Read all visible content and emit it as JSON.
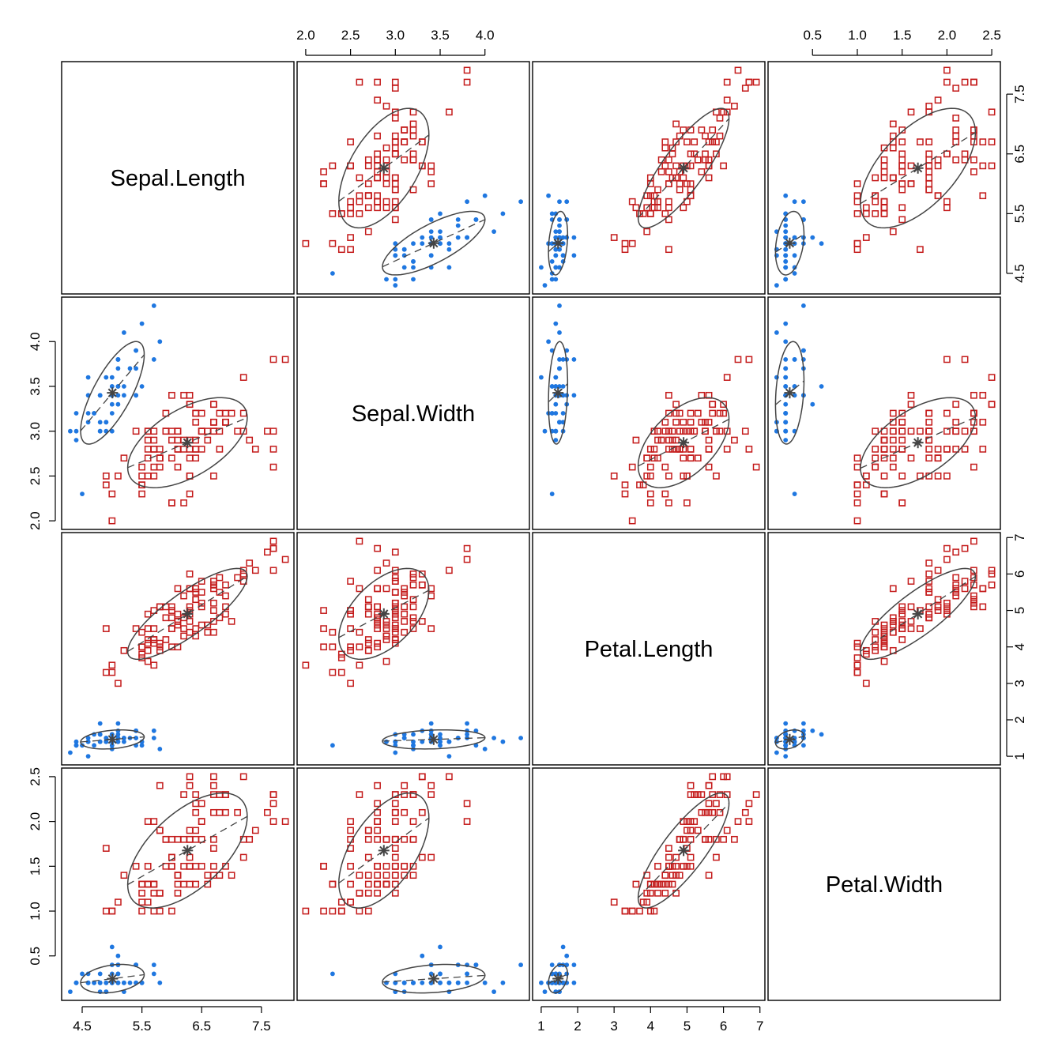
{
  "chart_data": {
    "type": "scatter",
    "layout": "scatterplot-matrix",
    "variables": [
      "Sepal.Length",
      "Sepal.Width",
      "Petal.Length",
      "Petal.Width"
    ],
    "ranges": [
      [
        4.3,
        7.9
      ],
      [
        2.0,
        4.4
      ],
      [
        1.0,
        6.9
      ],
      [
        0.1,
        2.5
      ]
    ],
    "ticks": [
      [
        "4.5",
        "5.5",
        "6.5",
        "7.5"
      ],
      [
        "2.0",
        "2.5",
        "3.0",
        "3.5",
        "4.0"
      ],
      [
        "1",
        "2",
        "3",
        "4",
        "5",
        "6",
        "7"
      ],
      [
        "0.5",
        "1.0",
        "1.5",
        "2.0",
        "2.5"
      ]
    ],
    "ellipse_level": 0.68,
    "groups": [
      {
        "color": "#1f77e0",
        "marker": "filled-circle",
        "points": [
          [
            5.1,
            3.5,
            1.4,
            0.2
          ],
          [
            4.9,
            3.0,
            1.4,
            0.2
          ],
          [
            4.7,
            3.2,
            1.3,
            0.2
          ],
          [
            4.6,
            3.1,
            1.5,
            0.2
          ],
          [
            5.0,
            3.6,
            1.4,
            0.2
          ],
          [
            5.4,
            3.9,
            1.7,
            0.4
          ],
          [
            4.6,
            3.4,
            1.4,
            0.3
          ],
          [
            5.0,
            3.4,
            1.5,
            0.2
          ],
          [
            4.4,
            2.9,
            1.4,
            0.2
          ],
          [
            4.9,
            3.1,
            1.5,
            0.1
          ],
          [
            5.4,
            3.7,
            1.5,
            0.2
          ],
          [
            4.8,
            3.4,
            1.6,
            0.2
          ],
          [
            4.8,
            3.0,
            1.4,
            0.1
          ],
          [
            4.3,
            3.0,
            1.1,
            0.1
          ],
          [
            5.8,
            4.0,
            1.2,
            0.2
          ],
          [
            5.7,
            4.4,
            1.5,
            0.4
          ],
          [
            5.4,
            3.9,
            1.3,
            0.4
          ],
          [
            5.1,
            3.5,
            1.4,
            0.3
          ],
          [
            5.7,
            3.8,
            1.7,
            0.3
          ],
          [
            5.1,
            3.8,
            1.5,
            0.3
          ],
          [
            5.4,
            3.4,
            1.7,
            0.2
          ],
          [
            5.1,
            3.7,
            1.5,
            0.4
          ],
          [
            4.6,
            3.6,
            1.0,
            0.2
          ],
          [
            5.1,
            3.3,
            1.7,
            0.5
          ],
          [
            4.8,
            3.4,
            1.9,
            0.2
          ],
          [
            5.0,
            3.0,
            1.6,
            0.2
          ],
          [
            5.0,
            3.4,
            1.6,
            0.4
          ],
          [
            5.2,
            3.5,
            1.5,
            0.2
          ],
          [
            5.2,
            3.4,
            1.4,
            0.2
          ],
          [
            4.7,
            3.2,
            1.6,
            0.2
          ],
          [
            4.8,
            3.1,
            1.6,
            0.2
          ],
          [
            5.4,
            3.4,
            1.5,
            0.4
          ],
          [
            5.2,
            4.1,
            1.5,
            0.1
          ],
          [
            5.5,
            4.2,
            1.4,
            0.2
          ],
          [
            4.9,
            3.1,
            1.5,
            0.2
          ],
          [
            5.0,
            3.2,
            1.2,
            0.2
          ],
          [
            5.5,
            3.5,
            1.3,
            0.2
          ],
          [
            4.9,
            3.6,
            1.4,
            0.1
          ],
          [
            4.4,
            3.0,
            1.3,
            0.2
          ],
          [
            5.1,
            3.4,
            1.5,
            0.2
          ],
          [
            5.0,
            3.5,
            1.3,
            0.3
          ],
          [
            4.5,
            2.3,
            1.3,
            0.3
          ],
          [
            4.4,
            3.2,
            1.3,
            0.2
          ],
          [
            5.0,
            3.5,
            1.6,
            0.6
          ],
          [
            5.1,
            3.8,
            1.9,
            0.4
          ],
          [
            4.8,
            3.0,
            1.4,
            0.3
          ],
          [
            5.1,
            3.8,
            1.6,
            0.2
          ],
          [
            4.6,
            3.2,
            1.4,
            0.2
          ],
          [
            5.3,
            3.7,
            1.5,
            0.2
          ],
          [
            5.0,
            3.3,
            1.4,
            0.2
          ]
        ]
      },
      {
        "color": "#c41a1a",
        "marker": "open-square",
        "points": [
          [
            7.0,
            3.2,
            4.7,
            1.4
          ],
          [
            6.4,
            3.2,
            4.5,
            1.5
          ],
          [
            6.9,
            3.1,
            4.9,
            1.5
          ],
          [
            5.5,
            2.3,
            4.0,
            1.3
          ],
          [
            6.5,
            2.8,
            4.6,
            1.5
          ],
          [
            5.7,
            2.8,
            4.5,
            1.3
          ],
          [
            6.3,
            3.3,
            4.7,
            1.6
          ],
          [
            4.9,
            2.4,
            3.3,
            1.0
          ],
          [
            6.6,
            2.9,
            4.6,
            1.3
          ],
          [
            5.2,
            2.7,
            3.9,
            1.4
          ],
          [
            5.0,
            2.0,
            3.5,
            1.0
          ],
          [
            5.9,
            3.0,
            4.2,
            1.5
          ],
          [
            6.0,
            2.2,
            4.0,
            1.0
          ],
          [
            6.1,
            2.9,
            4.7,
            1.4
          ],
          [
            5.6,
            2.9,
            3.6,
            1.3
          ],
          [
            6.7,
            3.1,
            4.4,
            1.4
          ],
          [
            5.6,
            3.0,
            4.5,
            1.5
          ],
          [
            5.8,
            2.7,
            4.1,
            1.0
          ],
          [
            6.2,
            2.2,
            4.5,
            1.5
          ],
          [
            5.6,
            2.5,
            3.9,
            1.1
          ],
          [
            5.9,
            3.2,
            4.8,
            1.8
          ],
          [
            6.1,
            2.8,
            4.0,
            1.3
          ],
          [
            6.3,
            2.5,
            4.9,
            1.5
          ],
          [
            6.1,
            2.8,
            4.7,
            1.2
          ],
          [
            6.4,
            2.9,
            4.3,
            1.3
          ],
          [
            6.6,
            3.0,
            4.4,
            1.4
          ],
          [
            6.8,
            2.8,
            4.8,
            1.4
          ],
          [
            6.7,
            3.0,
            5.0,
            1.7
          ],
          [
            6.0,
            2.9,
            4.5,
            1.5
          ],
          [
            5.7,
            2.6,
            3.5,
            1.0
          ],
          [
            5.5,
            2.4,
            3.8,
            1.1
          ],
          [
            5.5,
            2.4,
            3.7,
            1.0
          ],
          [
            5.8,
            2.7,
            3.9,
            1.2
          ],
          [
            6.0,
            2.7,
            5.1,
            1.6
          ],
          [
            5.4,
            3.0,
            4.5,
            1.5
          ],
          [
            6.0,
            3.4,
            4.5,
            1.6
          ],
          [
            6.7,
            3.1,
            4.7,
            1.5
          ],
          [
            6.3,
            2.3,
            4.4,
            1.3
          ],
          [
            5.6,
            3.0,
            4.1,
            1.3
          ],
          [
            5.5,
            2.5,
            4.0,
            1.3
          ],
          [
            5.5,
            2.6,
            4.4,
            1.2
          ],
          [
            6.1,
            3.0,
            4.6,
            1.4
          ],
          [
            5.8,
            2.6,
            4.0,
            1.2
          ],
          [
            5.0,
            2.3,
            3.3,
            1.0
          ],
          [
            5.6,
            2.7,
            4.2,
            1.3
          ],
          [
            5.7,
            3.0,
            4.2,
            1.2
          ],
          [
            5.7,
            2.9,
            4.2,
            1.3
          ],
          [
            6.2,
            2.9,
            4.3,
            1.3
          ],
          [
            5.1,
            2.5,
            3.0,
            1.1
          ],
          [
            5.7,
            2.8,
            4.1,
            1.3
          ],
          [
            6.3,
            3.3,
            6.0,
            2.5
          ],
          [
            5.8,
            2.7,
            5.1,
            1.9
          ],
          [
            7.1,
            3.0,
            5.9,
            2.1
          ],
          [
            6.3,
            2.9,
            5.6,
            1.8
          ],
          [
            6.5,
            3.0,
            5.8,
            2.2
          ],
          [
            7.6,
            3.0,
            6.6,
            2.1
          ],
          [
            4.9,
            2.5,
            4.5,
            1.7
          ],
          [
            7.3,
            2.9,
            6.3,
            1.8
          ],
          [
            6.7,
            2.5,
            5.8,
            1.8
          ],
          [
            7.2,
            3.6,
            6.1,
            2.5
          ],
          [
            6.5,
            3.2,
            5.1,
            2.0
          ],
          [
            6.4,
            2.7,
            5.3,
            1.9
          ],
          [
            6.8,
            3.0,
            5.5,
            2.1
          ],
          [
            5.7,
            2.5,
            5.0,
            2.0
          ],
          [
            5.8,
            2.8,
            5.1,
            2.4
          ],
          [
            6.4,
            3.2,
            5.3,
            2.3
          ],
          [
            6.5,
            3.0,
            5.5,
            1.8
          ],
          [
            7.7,
            3.8,
            6.7,
            2.2
          ],
          [
            7.7,
            2.6,
            6.9,
            2.3
          ],
          [
            6.0,
            2.2,
            5.0,
            1.5
          ],
          [
            6.9,
            3.2,
            5.7,
            2.3
          ],
          [
            5.6,
            2.8,
            4.9,
            2.0
          ],
          [
            7.7,
            2.8,
            6.7,
            2.0
          ],
          [
            6.3,
            2.7,
            4.9,
            1.8
          ],
          [
            6.7,
            3.3,
            5.7,
            2.1
          ],
          [
            7.2,
            3.2,
            6.0,
            1.8
          ],
          [
            6.2,
            2.8,
            4.8,
            1.8
          ],
          [
            6.1,
            3.0,
            4.9,
            1.8
          ],
          [
            6.4,
            2.8,
            5.6,
            2.1
          ],
          [
            7.2,
            3.0,
            5.8,
            1.6
          ],
          [
            7.4,
            2.8,
            6.1,
            1.9
          ],
          [
            7.9,
            3.8,
            6.4,
            2.0
          ],
          [
            6.4,
            2.8,
            5.6,
            2.2
          ],
          [
            6.3,
            2.8,
            5.1,
            1.5
          ],
          [
            6.1,
            2.6,
            5.6,
            1.4
          ],
          [
            7.7,
            3.0,
            6.1,
            2.3
          ],
          [
            6.3,
            3.4,
            5.6,
            2.4
          ],
          [
            6.4,
            3.1,
            5.5,
            1.8
          ],
          [
            6.0,
            3.0,
            4.8,
            1.8
          ],
          [
            6.9,
            3.1,
            5.4,
            2.1
          ],
          [
            6.7,
            3.1,
            5.6,
            2.4
          ],
          [
            6.9,
            3.1,
            5.1,
            2.3
          ],
          [
            5.8,
            2.7,
            5.1,
            1.9
          ],
          [
            6.8,
            3.2,
            5.9,
            2.3
          ],
          [
            6.7,
            3.3,
            5.7,
            2.5
          ],
          [
            6.7,
            3.0,
            5.2,
            2.3
          ],
          [
            6.3,
            2.5,
            5.0,
            1.9
          ],
          [
            6.5,
            3.0,
            5.2,
            2.0
          ],
          [
            6.2,
            3.4,
            5.4,
            2.3
          ],
          [
            5.9,
            3.0,
            5.1,
            1.8
          ]
        ]
      }
    ]
  }
}
